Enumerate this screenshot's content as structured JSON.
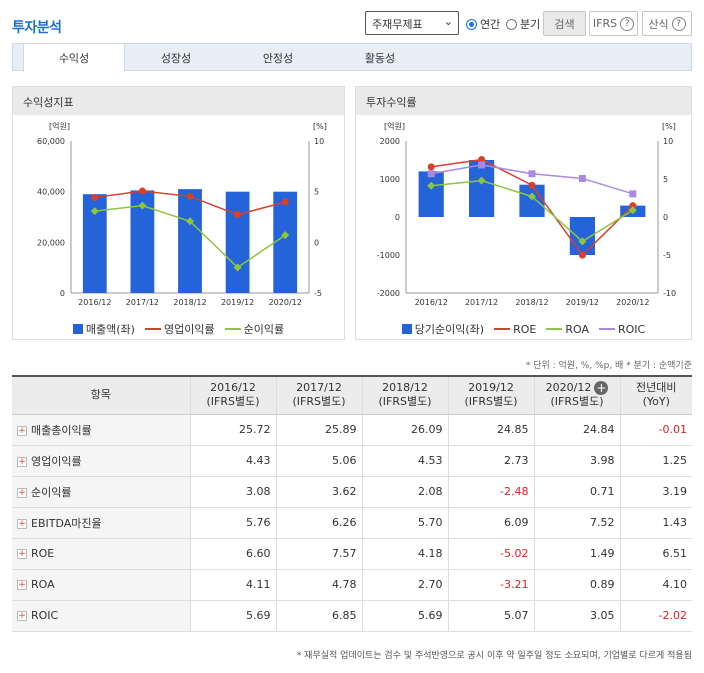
{
  "header": {
    "title": "투자분석",
    "select_value": "주재무제표",
    "radio_annual": "연간",
    "radio_quarter": "분기",
    "search_btn": "검색",
    "ifrs_btn": "IFRS",
    "formula_btn": "산식"
  },
  "tabs": [
    "수익성",
    "성장성",
    "안정성",
    "활동성"
  ],
  "left_panel": {
    "title": "수익성지표"
  },
  "right_panel": {
    "title": "투자수익률"
  },
  "chart_data": [
    {
      "type": "bar",
      "title": "수익성지표",
      "categories": [
        "2016/12",
        "2017/12",
        "2018/12",
        "2019/12",
        "2020/12"
      ],
      "y_left_unit": "[억원]",
      "y_right_unit": "[%]",
      "y_left_ticks": [
        "60,000",
        "40,000",
        "20,000",
        "0"
      ],
      "y_right_ticks": [
        "10",
        "5",
        "0",
        "-5"
      ],
      "ylim_left": [
        0,
        60000
      ],
      "ylim_right": [
        -5,
        10
      ],
      "series": [
        {
          "name": "매출액(좌)",
          "kind": "bar",
          "axis": "left",
          "color": "#2563d9",
          "values": [
            39000,
            40500,
            41000,
            40000,
            40000
          ]
        },
        {
          "name": "영업이익률",
          "kind": "line",
          "axis": "right",
          "color": "#d8402c",
          "values": [
            4.43,
            5.06,
            4.53,
            2.73,
            3.98
          ]
        },
        {
          "name": "순이익률",
          "kind": "line",
          "axis": "right",
          "color": "#8cc63f",
          "values": [
            3.08,
            3.62,
            2.08,
            -2.48,
            0.71
          ]
        }
      ]
    },
    {
      "type": "bar",
      "title": "투자수익률",
      "categories": [
        "2016/12",
        "2017/12",
        "2018/12",
        "2019/12",
        "2020/12"
      ],
      "y_left_unit": "[억원]",
      "y_right_unit": "[%]",
      "y_left_ticks": [
        "2000",
        "1000",
        "0",
        "-1000",
        "-2000"
      ],
      "y_right_ticks": [
        "10",
        "5",
        "0",
        "-5",
        "-10"
      ],
      "ylim_left": [
        -2000,
        2000
      ],
      "ylim_right": [
        -10,
        10
      ],
      "series": [
        {
          "name": "당기순이익(좌)",
          "kind": "bar",
          "axis": "left",
          "color": "#2563d9",
          "values": [
            1200,
            1500,
            850,
            -1000,
            300
          ]
        },
        {
          "name": "ROE",
          "kind": "line",
          "axis": "right",
          "color": "#d8402c",
          "values": [
            6.6,
            7.57,
            4.18,
            -5.02,
            1.49
          ]
        },
        {
          "name": "ROA",
          "kind": "line",
          "axis": "right",
          "color": "#8cc63f",
          "values": [
            4.11,
            4.78,
            2.7,
            -3.21,
            0.89
          ]
        },
        {
          "name": "ROIC",
          "kind": "line",
          "axis": "right",
          "color": "#a98ae0",
          "values": [
            5.69,
            6.85,
            5.69,
            5.07,
            3.05
          ]
        }
      ]
    }
  ],
  "unit_note": "* 단위 : 억원, %, %p, 배   * 분기 : 순액기준",
  "table": {
    "headers": [
      [
        "항목",
        ""
      ],
      [
        "2016/12",
        "(IFRS별도)"
      ],
      [
        "2017/12",
        "(IFRS별도)"
      ],
      [
        "2018/12",
        "(IFRS별도)"
      ],
      [
        "2019/12",
        "(IFRS별도)"
      ],
      [
        "2020/12",
        "(IFRS별도)"
      ],
      [
        "전년대비",
        "(YoY)"
      ]
    ],
    "rows": [
      {
        "label": "매출총이익률",
        "values": [
          "25.72",
          "25.89",
          "26.09",
          "24.85",
          "24.84",
          "-0.01"
        ]
      },
      {
        "label": "영업이익률",
        "values": [
          "4.43",
          "5.06",
          "4.53",
          "2.73",
          "3.98",
          "1.25"
        ]
      },
      {
        "label": "순이익률",
        "values": [
          "3.08",
          "3.62",
          "2.08",
          "-2.48",
          "0.71",
          "3.19"
        ]
      },
      {
        "label": "EBITDA마진율",
        "values": [
          "5.76",
          "6.26",
          "5.70",
          "6.09",
          "7.52",
          "1.43"
        ]
      },
      {
        "label": "ROE",
        "values": [
          "6.60",
          "7.57",
          "4.18",
          "-5.02",
          "1.49",
          "6.51"
        ]
      },
      {
        "label": "ROA",
        "values": [
          "4.11",
          "4.78",
          "2.70",
          "-3.21",
          "0.89",
          "4.10"
        ]
      },
      {
        "label": "ROIC",
        "values": [
          "5.69",
          "6.85",
          "5.69",
          "5.07",
          "3.05",
          "-2.02"
        ]
      }
    ]
  },
  "footer_note": "* 재무실적 업데이트는 검수 및 주석반영으로 공시 이후 약 일주일 정도 소요되며, 기업별로 다르게 적용됨"
}
